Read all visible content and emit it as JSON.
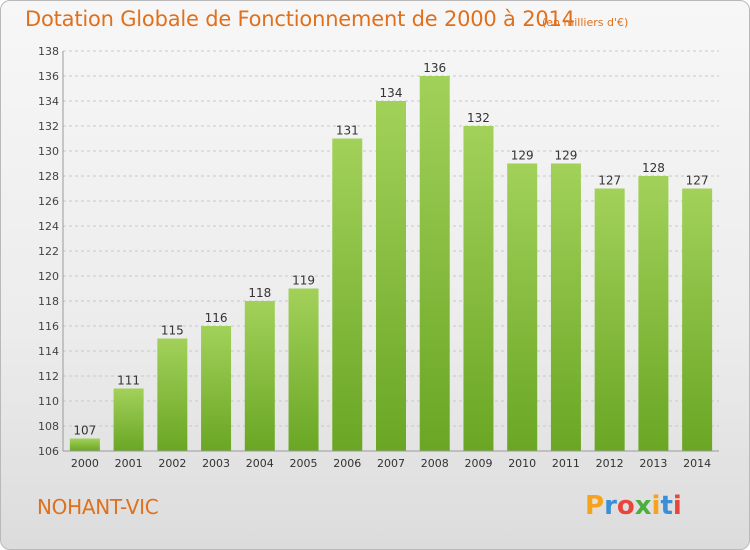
{
  "chart_data": {
    "type": "bar",
    "title": "Dotation Globale de Fonctionnement de 2000 à 2014",
    "subtitle": "(en milliers d'€)",
    "categories": [
      "2000",
      "2001",
      "2002",
      "2003",
      "2004",
      "2005",
      "2006",
      "2007",
      "2008",
      "2009",
      "2010",
      "2011",
      "2012",
      "2013",
      "2014"
    ],
    "values": [
      107,
      111,
      115,
      116,
      118,
      119,
      131,
      134,
      136,
      132,
      129,
      129,
      127,
      128,
      127
    ],
    "ylim": [
      106,
      138
    ],
    "yticks": [
      106,
      108,
      110,
      112,
      114,
      116,
      118,
      120,
      122,
      124,
      126,
      128,
      130,
      132,
      134,
      136,
      138
    ],
    "grid": true,
    "bar_color_top": "#a2d15a",
    "bar_color_bottom": "#6aa624"
  },
  "commune": "NOHANT-VIC",
  "logo": {
    "letters": [
      "P",
      "r",
      "o",
      "x",
      "i",
      "t",
      "i"
    ],
    "colors": [
      "#f7a21b",
      "#3a8fd6",
      "#e8453c",
      "#4cae3f",
      "#f7a21b",
      "#3a8fd6",
      "#e8453c"
    ]
  },
  "colors": {
    "accent": "#e0701c",
    "grid": "#c8c8c8",
    "axis": "#555555"
  }
}
